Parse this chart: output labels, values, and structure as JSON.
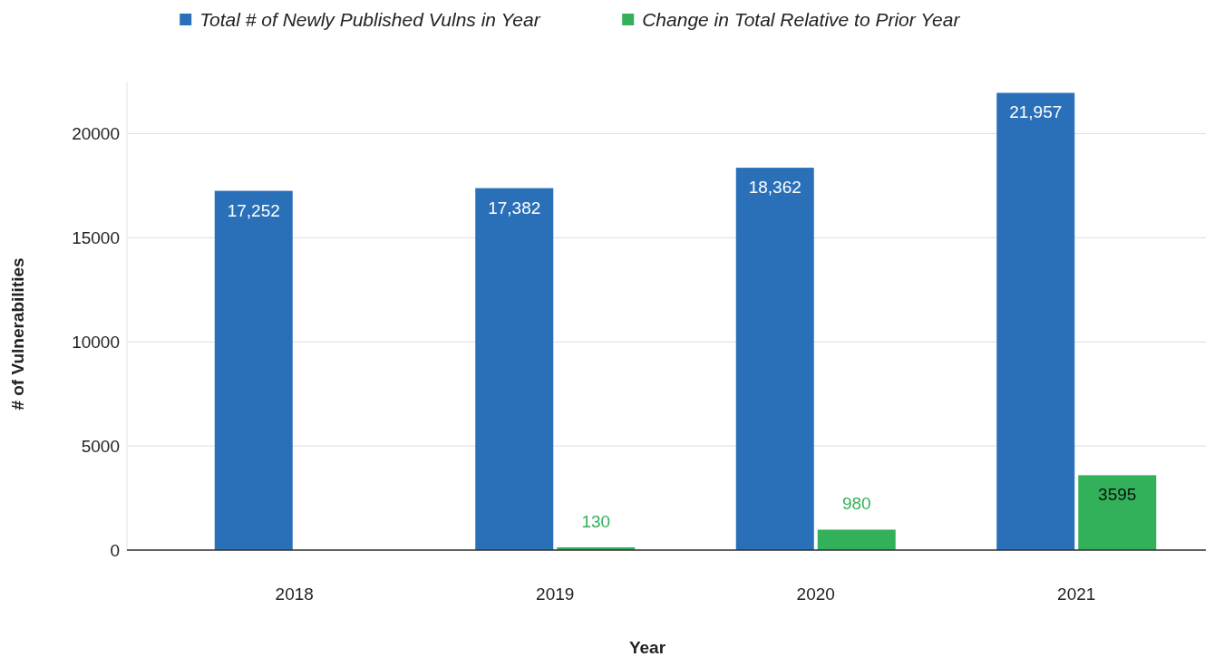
{
  "chart_data": {
    "type": "bar",
    "xlabel": "Year",
    "ylabel": "# of Vulnerabilities",
    "categories": [
      "2018",
      "2019",
      "2020",
      "2021"
    ],
    "series": [
      {
        "name": "Total # of Newly Published Vulns in Year",
        "color": "#2a70b8",
        "values": [
          17252,
          17382,
          18362,
          21957
        ],
        "value_labels": [
          "17,252",
          "17,382",
          "18,362",
          "21,957"
        ]
      },
      {
        "name": "Change in Total Relative to Prior Year",
        "color": "#33b05a",
        "values": [
          null,
          130,
          980,
          3595
        ],
        "value_labels": [
          null,
          "130",
          "980",
          "3595"
        ]
      }
    ],
    "ylim": [
      0,
      22500
    ],
    "yticks": [
      0,
      5000,
      10000,
      15000,
      20000
    ],
    "grid": "y",
    "legend": "top"
  }
}
